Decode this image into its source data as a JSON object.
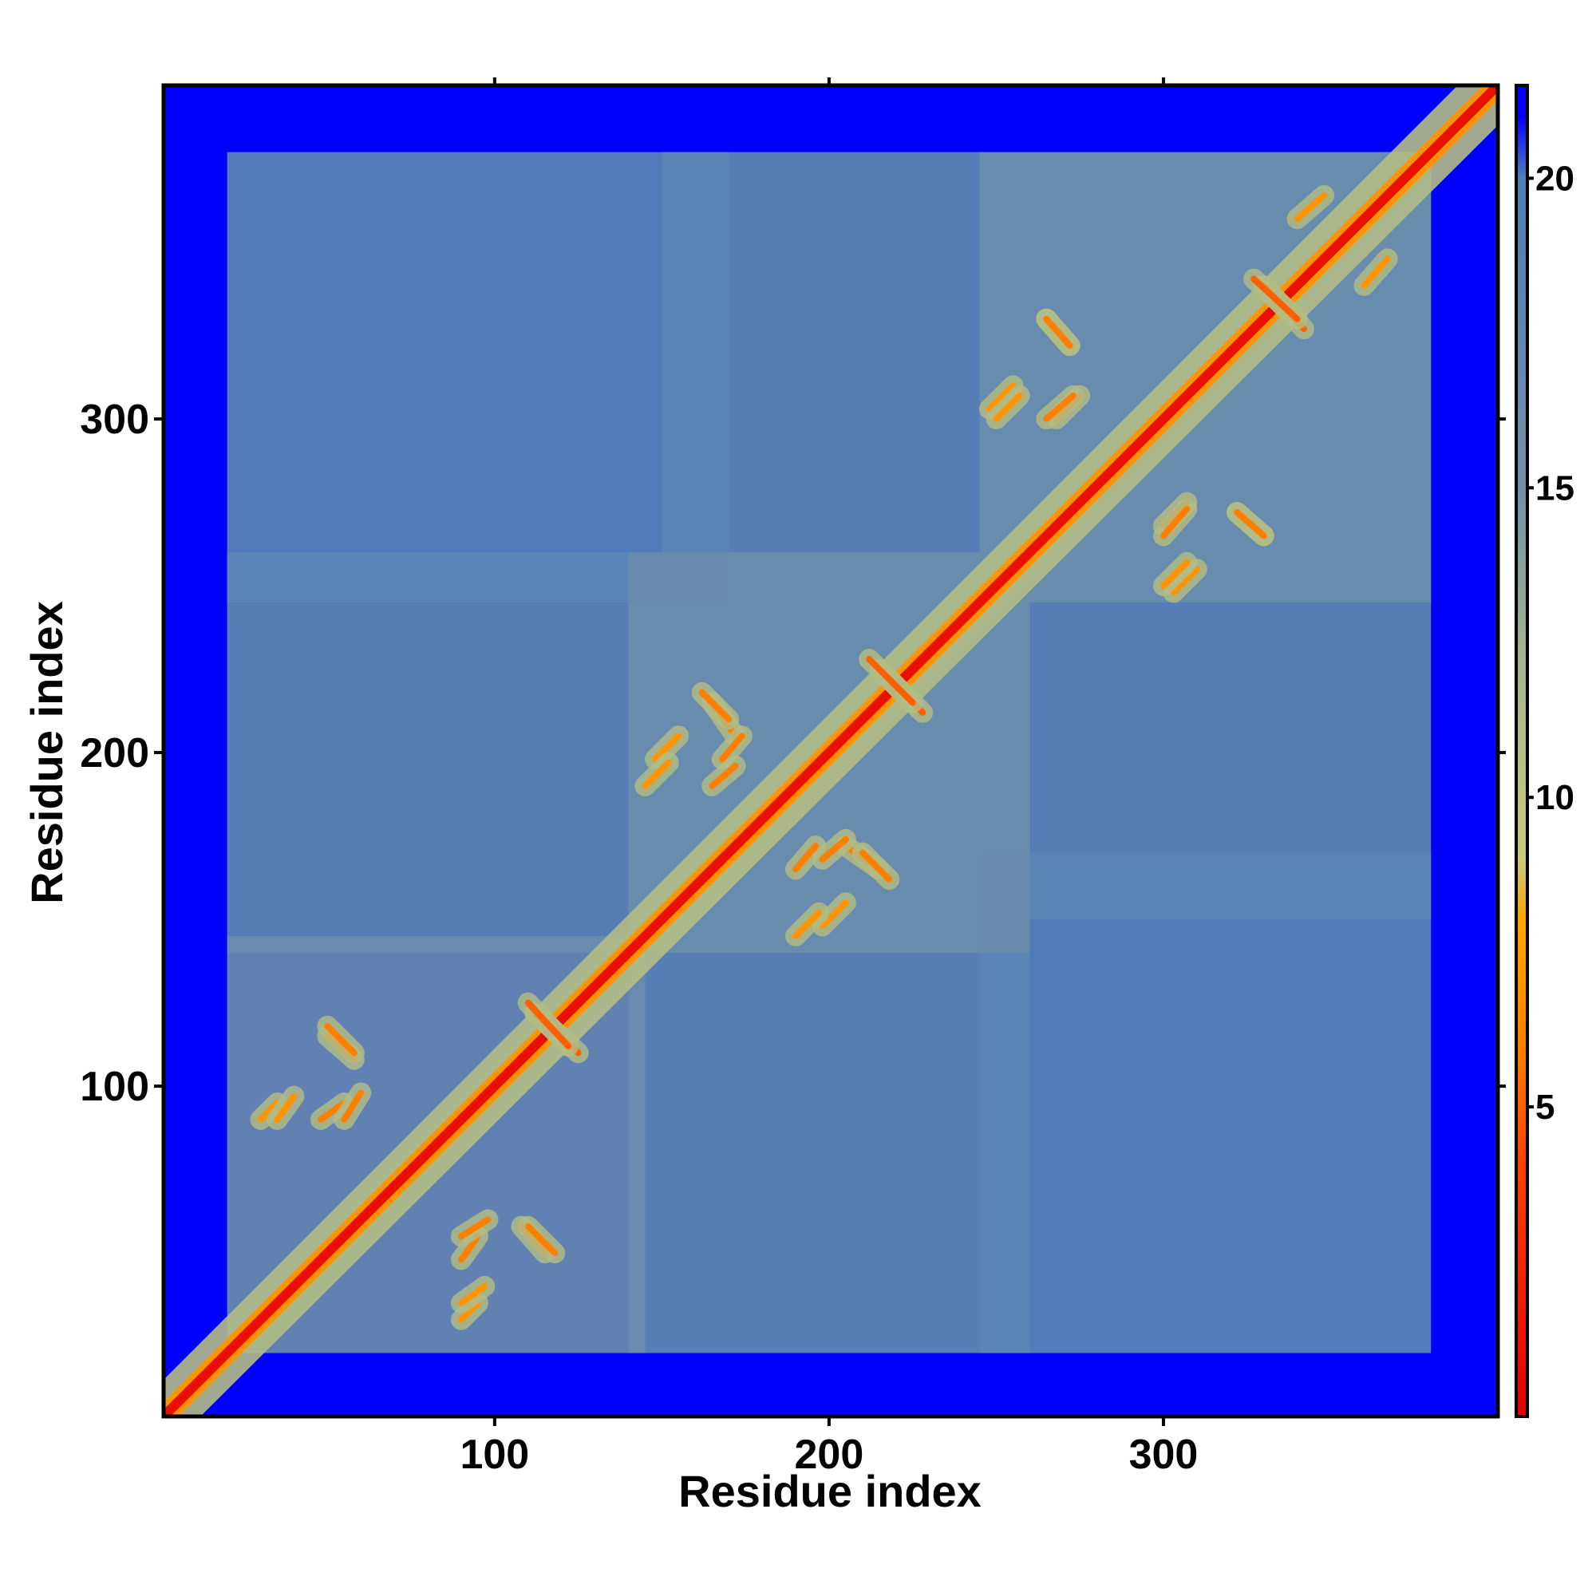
{
  "chart_data": {
    "type": "heatmap",
    "title": "",
    "xlabel": "Residue index",
    "ylabel": "Residue index",
    "xlim": [
      1,
      400
    ],
    "ylim": [
      1,
      400
    ],
    "x_ticks": [
      100,
      200,
      300
    ],
    "y_ticks": [
      100,
      200,
      300
    ],
    "colorbar": {
      "range": [
        0,
        21.5
      ],
      "ticks": [
        5,
        10,
        15,
        20
      ],
      "stops": [
        {
          "value": 0,
          "color": "#e00000"
        },
        {
          "value": 4,
          "color": "#ff4000"
        },
        {
          "value": 6,
          "color": "#ff8000"
        },
        {
          "value": 8,
          "color": "#ffa500"
        },
        {
          "value": 9,
          "color": "#c8c878"
        },
        {
          "value": 12,
          "color": "#a8b88c"
        },
        {
          "value": 15,
          "color": "#7090a8"
        },
        {
          "value": 18,
          "color": "#5a85b5"
        },
        {
          "value": 20,
          "color": "#5080b8"
        },
        {
          "value": 21,
          "color": "#0000ff"
        }
      ]
    },
    "matrix_description_values": {
      "background_value": 21,
      "diagonal_value": 1,
      "high_value_color": "#0000ff",
      "low_value_color": "#e00000"
    },
    "domains": [
      {
        "start": 20,
        "end": 145,
        "value": 16
      },
      {
        "start": 140,
        "end": 260,
        "value": 16
      },
      {
        "start": 245,
        "end": 380,
        "value": 16
      }
    ],
    "inter_domain_regions": [
      {
        "rows": [
          20,
          255
        ],
        "cols": [
          140,
          260
        ],
        "value": 17
      },
      {
        "rows": [
          150,
          380
        ],
        "cols": [
          245,
          380
        ],
        "value": 17
      },
      {
        "rows": [
          20,
          170
        ],
        "cols": [
          245,
          380
        ],
        "value": 18
      }
    ],
    "contact_segments": [
      {
        "i1": 50,
        "j1": 115,
        "i2": 58,
        "j2": 108,
        "value": 6
      },
      {
        "i1": 55,
        "j1": 95,
        "i2": 48,
        "j2": 90,
        "value": 6
      },
      {
        "i1": 35,
        "j1": 95,
        "i2": 30,
        "j2": 90,
        "value": 7
      },
      {
        "i1": 90,
        "j1": 55,
        "i2": 98,
        "j2": 60,
        "value": 6
      },
      {
        "i1": 110,
        "j1": 58,
        "i2": 118,
        "j2": 50,
        "value": 6
      },
      {
        "i1": 90,
        "j1": 35,
        "i2": 97,
        "j2": 40,
        "value": 7
      },
      {
        "i1": 112,
        "j1": 122,
        "i2": 125,
        "j2": 110,
        "value": 5
      },
      {
        "i1": 165,
        "j1": 215,
        "i2": 172,
        "j2": 205,
        "value": 6
      },
      {
        "i1": 168,
        "j1": 198,
        "i2": 174,
        "j2": 205,
        "value": 6
      },
      {
        "i1": 148,
        "j1": 198,
        "i2": 155,
        "j2": 205,
        "value": 7
      },
      {
        "i1": 190,
        "j1": 165,
        "i2": 196,
        "j2": 172,
        "value": 6
      },
      {
        "i1": 210,
        "j1": 170,
        "i2": 218,
        "j2": 162,
        "value": 6
      },
      {
        "i1": 190,
        "j1": 145,
        "i2": 197,
        "j2": 152,
        "value": 7
      },
      {
        "i1": 215,
        "j1": 225,
        "i2": 228,
        "j2": 212,
        "value": 5
      },
      {
        "i1": 265,
        "j1": 330,
        "i2": 272,
        "j2": 322,
        "value": 6
      },
      {
        "i1": 268,
        "j1": 300,
        "i2": 275,
        "j2": 307,
        "value": 6
      },
      {
        "i1": 248,
        "j1": 303,
        "i2": 255,
        "j2": 310,
        "value": 7
      },
      {
        "i1": 300,
        "j1": 265,
        "i2": 307,
        "j2": 273,
        "value": 6
      },
      {
        "i1": 322,
        "j1": 272,
        "i2": 330,
        "j2": 265,
        "value": 6
      },
      {
        "i1": 300,
        "j1": 250,
        "i2": 307,
        "j2": 257,
        "value": 7
      },
      {
        "i1": 330,
        "j1": 340,
        "i2": 342,
        "j2": 327,
        "value": 5
      },
      {
        "i1": 340,
        "j1": 360,
        "i2": 348,
        "j2": 367,
        "value": 7
      }
    ]
  }
}
